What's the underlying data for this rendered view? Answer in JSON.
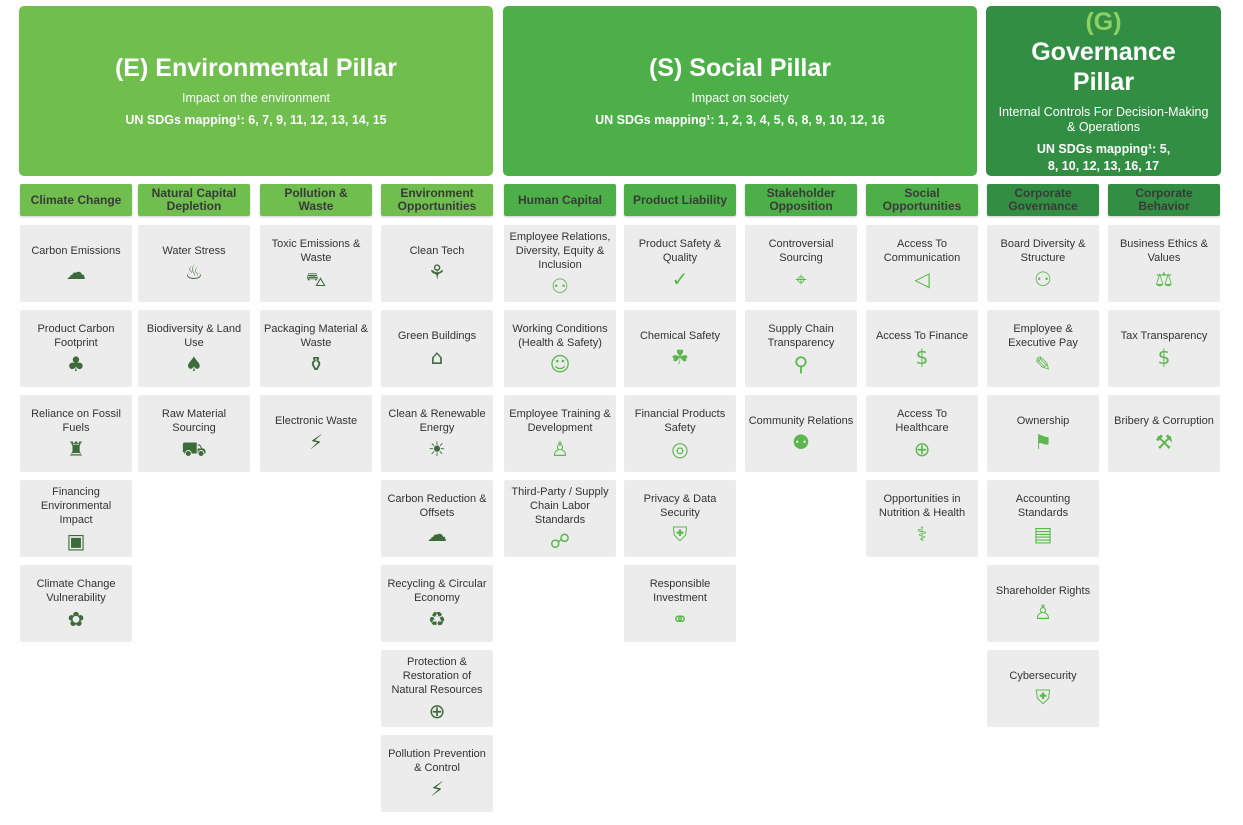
{
  "colors": {
    "environmental": "#6fbe4e",
    "social": "#4caf48",
    "governance": "#328e43",
    "governance_letter": "#8fd064",
    "card_bg": "#ececec",
    "icon_env": "#3d6b3a",
    "icon_green": "#5cb84e"
  },
  "pillars": [
    {
      "id": "environmental",
      "letter": "(E)",
      "title": "Environmental Pillar",
      "subtitle": "Impact on the environment",
      "sdgs": "UN SDGs mapping¹: 6, 7, 9, 11, 12, 13, 14, 15",
      "categories": [
        {
          "label": "Climate Change",
          "items": [
            {
              "label": "Carbon Emissions",
              "icon": "co2-cloud-icon",
              "glyph": "☁"
            },
            {
              "label": "Product Carbon Footprint",
              "icon": "footprint-icon",
              "glyph": "♣"
            },
            {
              "label": "Reliance on Fossil Fuels",
              "icon": "factory-icon",
              "glyph": "♜"
            },
            {
              "label": "Financing Environmental Impact",
              "icon": "money-coins-icon",
              "glyph": "▣"
            },
            {
              "label": "Climate Change Vulnerability",
              "icon": "hand-plant-icon",
              "glyph": "✿"
            }
          ]
        },
        {
          "label": "Natural Capital Depletion",
          "items": [
            {
              "label": "Water Stress",
              "icon": "water-drop-icon",
              "glyph": "♨"
            },
            {
              "label": "Biodiversity & Land Use",
              "icon": "tree-icon",
              "glyph": "♠"
            },
            {
              "label": "Raw Material Sourcing",
              "icon": "mine-cart-icon",
              "glyph": "⛟"
            }
          ]
        },
        {
          "label": "Pollution & Waste",
          "items": [
            {
              "label": "Toxic Emissions & Waste",
              "icon": "car-icon",
              "glyph": "⛍"
            },
            {
              "label": "Packaging Material & Waste",
              "icon": "bottle-icon",
              "glyph": "⚱"
            },
            {
              "label": "Electronic Waste",
              "icon": "electronic-waste-icon",
              "glyph": "⚡"
            }
          ]
        },
        {
          "label": "Environment Opportunities",
          "items": [
            {
              "label": "Clean Tech",
              "icon": "plug-plant-icon",
              "glyph": "⚘"
            },
            {
              "label": "Green Buildings",
              "icon": "green-building-icon",
              "glyph": "⌂"
            },
            {
              "label": "Clean & Renewable Energy",
              "icon": "solar-panel-icon",
              "glyph": "☀"
            },
            {
              "label": "Carbon Reduction & Offsets",
              "icon": "co2-cloud-icon",
              "glyph": "☁"
            },
            {
              "label": "Recycling & Circular Economy",
              "icon": "recycle-icon",
              "glyph": "♻"
            },
            {
              "label": "Protection & Restoration of Natural Resources",
              "icon": "hand-globe-icon",
              "glyph": "⊕"
            },
            {
              "label": "Pollution Prevention & Control",
              "icon": "power-plant-icon",
              "glyph": "⚡"
            }
          ]
        }
      ]
    },
    {
      "id": "social",
      "letter": "(S)",
      "title": "Social Pillar",
      "subtitle": "Impact on society",
      "sdgs": "UN SDGs mapping¹: 1, 2, 3, 4, 5, 6, 8, 9, 10, 12, 16",
      "categories": [
        {
          "label": "Human Capital",
          "items": [
            {
              "label": "Employee Relations, Diversity, Equity & Inclusion",
              "icon": "group-icon",
              "glyph": "⚇"
            },
            {
              "label": "Working Conditions (Health & Safety)",
              "icon": "worker-icon",
              "glyph": "☺"
            },
            {
              "label": "Employee Training & Development",
              "icon": "training-icon",
              "glyph": "♙"
            },
            {
              "label": "Third-Party / Supply Chain Labor Standards",
              "icon": "network-people-icon",
              "glyph": "☍"
            }
          ]
        },
        {
          "label": "Product Liability",
          "items": [
            {
              "label": "Product Safety & Quality",
              "icon": "check-circle-icon",
              "glyph": "✓"
            },
            {
              "label": "Chemical Safety",
              "icon": "factory-leaf-icon",
              "glyph": "☘"
            },
            {
              "label": "Financial Products Safety",
              "icon": "piggy-bank-icon",
              "glyph": "◎"
            },
            {
              "label": "Privacy & Data Security",
              "icon": "shield-icon",
              "glyph": "⛨"
            },
            {
              "label": "Responsible Investment",
              "icon": "handshake-icon",
              "glyph": "⚭"
            }
          ]
        },
        {
          "label": "Stakeholder Opposition",
          "items": [
            {
              "label": "Controversial Sourcing",
              "icon": "location-pin-icon",
              "glyph": "⌖"
            },
            {
              "label": "Supply Chain Transparency",
              "icon": "magnifier-icon",
              "glyph": "⚲"
            },
            {
              "label": "Community Relations",
              "icon": "community-icon",
              "glyph": "⚉"
            }
          ]
        },
        {
          "label": "Social Opportunities",
          "items": [
            {
              "label": "Access To Communication",
              "icon": "megaphone-icon",
              "glyph": "◁"
            },
            {
              "label": "Access To Finance",
              "icon": "person-dollar-icon",
              "glyph": "$"
            },
            {
              "label": "Access To Healthcare",
              "icon": "medical-cross-icon",
              "glyph": "⊕"
            },
            {
              "label": "Opportunities in Nutrition & Health",
              "icon": "stethoscope-icon",
              "glyph": "⚕"
            }
          ]
        }
      ]
    },
    {
      "id": "governance",
      "letter": "(G)",
      "title": "Governance Pillar",
      "subtitle": "Internal Controls For Decision-Making & Operations",
      "sdgs": "UN SDGs mapping¹: 5, 8, 10, 12, 13, 16, 17",
      "categories": [
        {
          "label": "Corporate Governance",
          "items": [
            {
              "label": "Board Diversity & Structure",
              "icon": "people-icon",
              "glyph": "⚇"
            },
            {
              "label": "Employee & Executive Pay",
              "icon": "check-pay-icon",
              "glyph": "✎"
            },
            {
              "label": "Ownership",
              "icon": "person-flag-icon",
              "glyph": "⚑"
            },
            {
              "label": "Accounting Standards",
              "icon": "calculator-document-icon",
              "glyph": "▤"
            },
            {
              "label": "Shareholder Rights",
              "icon": "person-sliders-icon",
              "glyph": "♙"
            },
            {
              "label": "Cybersecurity",
              "icon": "shield-lock-icon",
              "glyph": "⛨"
            }
          ]
        },
        {
          "label": "Corporate Behavior",
          "items": [
            {
              "label": "Business Ethics & Values",
              "icon": "scales-icon",
              "glyph": "⚖"
            },
            {
              "label": "Tax Transparency",
              "icon": "money-bag-icon",
              "glyph": "$"
            },
            {
              "label": "Bribery & Corruption",
              "icon": "gavel-icon",
              "glyph": "⚒"
            }
          ]
        }
      ]
    }
  ]
}
